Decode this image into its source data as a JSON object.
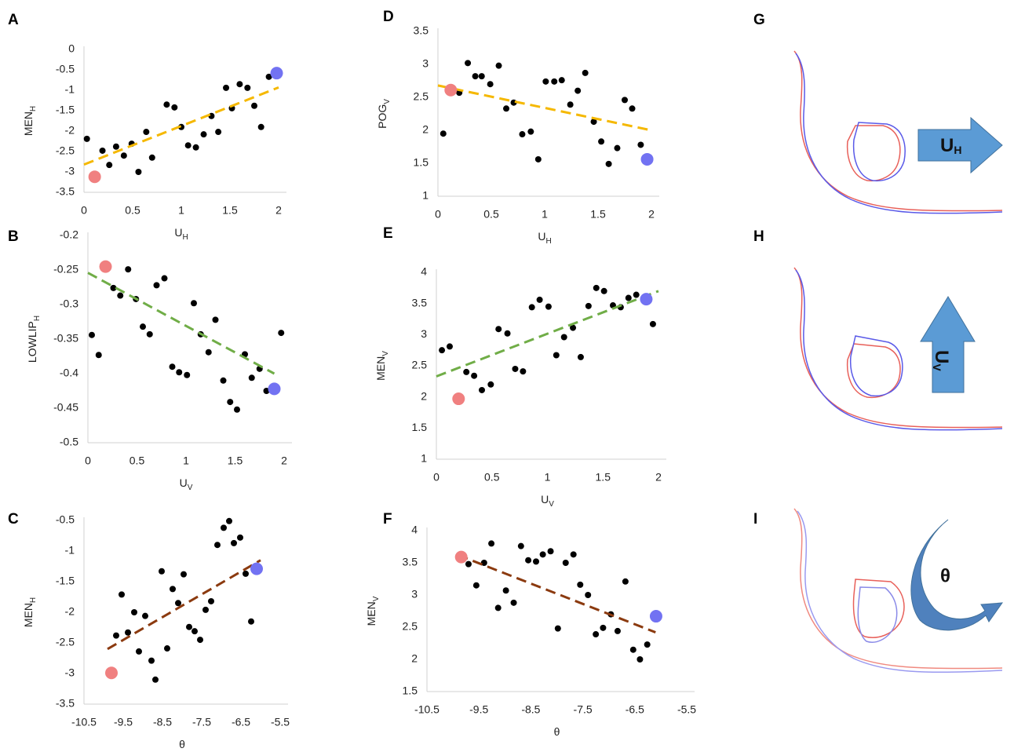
{
  "chart_data": [
    {
      "type": "scatter",
      "panel": "A",
      "xlabel": "U",
      "xlabel_sub": "H",
      "ylabel": "MEN",
      "ylabel_sub": "H",
      "xlim": [
        0,
        2
      ],
      "xticks": [
        0,
        0.5,
        1,
        1.5,
        2
      ],
      "ylim": [
        -3.5,
        0
      ],
      "yticks": [
        0,
        -0.5,
        -1,
        -1.5,
        -2,
        -2.5,
        -3,
        -3.5
      ],
      "trendline": {
        "x": [
          0,
          2
        ],
        "y": [
          -2.82,
          -0.93
        ],
        "color": "#f5b800"
      },
      "series": [
        {
          "color": "#000000",
          "x": [
            0.03,
            0.19,
            0.26,
            0.33,
            0.41,
            0.49,
            0.56,
            0.64,
            0.7,
            0.85,
            0.93,
            1.0,
            1.07,
            1.15,
            1.23,
            1.31,
            1.38,
            1.46,
            1.52,
            1.6,
            1.68,
            1.75,
            1.82,
            1.9
          ],
          "values": [
            -2.19,
            -2.48,
            -2.83,
            -2.38,
            -2.6,
            -2.31,
            -3.0,
            -2.02,
            -2.65,
            -1.35,
            -1.42,
            -1.9,
            -2.35,
            -2.4,
            -2.08,
            -1.63,
            -2.02,
            -0.94,
            -1.44,
            -0.85,
            -0.94,
            -1.38,
            -1.9,
            -0.67
          ]
        },
        {
          "color": "#f08080",
          "x": [
            0.11
          ],
          "values": [
            -3.12
          ]
        },
        {
          "color": "#7272f2",
          "x": [
            1.98
          ],
          "values": [
            -0.58
          ]
        }
      ]
    },
    {
      "type": "scatter",
      "panel": "B",
      "xlabel": "U",
      "xlabel_sub": "V",
      "ylabel": "LOWLIP",
      "ylabel_sub": "H",
      "xlim": [
        0,
        2
      ],
      "xticks": [
        0,
        0.5,
        1,
        1.5,
        2
      ],
      "ylim": [
        -0.5,
        -0.2
      ],
      "yticks": [
        -0.2,
        -0.25,
        -0.3,
        -0.35,
        -0.4,
        -0.45,
        -0.5
      ],
      "trendline": {
        "x": [
          0,
          1.9
        ],
        "y": [
          -0.254,
          -0.4
        ],
        "color": "#70ad47"
      },
      "series": [
        {
          "color": "#000000",
          "x": [
            0.04,
            0.11,
            0.26,
            0.33,
            0.41,
            0.49,
            0.56,
            0.63,
            0.7,
            0.78,
            0.86,
            0.93,
            1.01,
            1.08,
            1.15,
            1.23,
            1.3,
            1.38,
            1.45,
            1.52,
            1.6,
            1.67,
            1.75,
            1.82,
            1.97
          ],
          "values": [
            -0.344,
            -0.373,
            -0.276,
            -0.287,
            -0.249,
            -0.292,
            -0.332,
            -0.343,
            -0.272,
            -0.262,
            -0.39,
            -0.398,
            -0.402,
            -0.298,
            -0.343,
            -0.369,
            -0.322,
            -0.41,
            -0.441,
            -0.452,
            -0.372,
            -0.406,
            -0.393,
            -0.425,
            -0.341
          ]
        },
        {
          "color": "#f08080",
          "x": [
            0.18
          ],
          "values": [
            -0.245
          ]
        },
        {
          "color": "#7272f2",
          "x": [
            1.9
          ],
          "values": [
            -0.422
          ]
        }
      ]
    },
    {
      "type": "scatter",
      "panel": "C",
      "xlabel": "θ",
      "ylabel": "MEN",
      "ylabel_sub": "H",
      "xlim": [
        -10.5,
        -5.5
      ],
      "xticks": [
        -10.5,
        -9.5,
        -8.5,
        -7.5,
        -6.5,
        -5.5
      ],
      "ylim": [
        -3.5,
        -0.5
      ],
      "yticks": [
        -0.5,
        -1,
        -1.5,
        -2,
        -2.5,
        -3,
        -3.5
      ],
      "trendline": {
        "x": [
          -9.9,
          -6.0
        ],
        "y": [
          -2.6,
          -1.15
        ],
        "color": "#8b3a0f"
      },
      "series": [
        {
          "color": "#000000",
          "x": [
            -9.68,
            -9.54,
            -9.38,
            -9.22,
            -9.1,
            -8.94,
            -8.78,
            -8.68,
            -8.52,
            -8.38,
            -8.24,
            -8.1,
            -7.96,
            -7.82,
            -7.68,
            -7.54,
            -7.4,
            -7.26,
            -7.1,
            -6.94,
            -6.8,
            -6.68,
            -6.52,
            -6.38,
            -6.24
          ],
          "values": [
            -2.38,
            -1.71,
            -2.33,
            -2.0,
            -2.64,
            -2.06,
            -2.79,
            -3.1,
            -1.33,
            -2.59,
            -1.62,
            -1.85,
            -1.38,
            -2.24,
            -2.31,
            -2.45,
            -1.96,
            -1.82,
            -0.9,
            -0.62,
            -0.51,
            -0.87,
            -0.78,
            -1.37,
            -2.15
          ]
        },
        {
          "color": "#f08080",
          "x": [
            -9.8
          ],
          "values": [
            -2.99
          ]
        },
        {
          "color": "#7272f2",
          "x": [
            -6.1
          ],
          "values": [
            -1.29
          ]
        }
      ]
    },
    {
      "type": "scatter",
      "panel": "D",
      "xlabel": "U",
      "xlabel_sub": "H",
      "ylabel": "POG",
      "ylabel_sub": "V",
      "xlim": [
        0,
        2
      ],
      "xticks": [
        0,
        0.5,
        1,
        1.5,
        2
      ],
      "ylim": [
        1,
        3.5
      ],
      "yticks": [
        3.5,
        3,
        2.5,
        2,
        1.5,
        1
      ],
      "trendline": {
        "x": [
          0,
          2
        ],
        "y": [
          2.68,
          2.0
        ],
        "color": "#f5b800"
      },
      "series": [
        {
          "color": "#000000",
          "x": [
            0.05,
            0.2,
            0.28,
            0.35,
            0.41,
            0.49,
            0.57,
            0.64,
            0.71,
            0.79,
            0.87,
            0.94,
            1.01,
            1.09,
            1.16,
            1.24,
            1.31,
            1.38,
            1.46,
            1.53,
            1.6,
            1.68,
            1.75,
            1.82,
            1.9
          ],
          "values": [
            1.95,
            2.57,
            3.02,
            2.82,
            2.82,
            2.7,
            2.98,
            2.33,
            2.42,
            1.94,
            1.98,
            1.56,
            2.74,
            2.74,
            2.76,
            2.39,
            2.6,
            2.87,
            2.13,
            1.83,
            1.49,
            1.73,
            2.46,
            2.33,
            1.78
          ]
        },
        {
          "color": "#f08080",
          "x": [
            0.12
          ],
          "values": [
            2.61
          ]
        },
        {
          "color": "#7272f2",
          "x": [
            1.96
          ],
          "values": [
            1.56
          ]
        }
      ]
    },
    {
      "type": "scatter",
      "panel": "E",
      "xlabel": "U",
      "xlabel_sub": "V",
      "ylabel": "MEN",
      "ylabel_sub": "V",
      "xlim": [
        0,
        2
      ],
      "xticks": [
        0,
        0.5,
        1,
        1.5,
        2
      ],
      "ylim": [
        1,
        4
      ],
      "yticks": [
        4,
        3.5,
        3,
        2.5,
        2,
        1.5,
        1
      ],
      "trendline": {
        "x": [
          0,
          2
        ],
        "y": [
          2.33,
          3.7
        ],
        "color": "#70ad47"
      },
      "series": [
        {
          "color": "#000000",
          "x": [
            0.05,
            0.12,
            0.27,
            0.34,
            0.41,
            0.49,
            0.56,
            0.64,
            0.71,
            0.78,
            0.86,
            0.93,
            1.01,
            1.08,
            1.15,
            1.23,
            1.3,
            1.37,
            1.44,
            1.51,
            1.59,
            1.66,
            1.73,
            1.8,
            1.95
          ],
          "values": [
            2.75,
            2.81,
            2.4,
            2.34,
            2.11,
            2.2,
            3.09,
            3.02,
            2.45,
            2.41,
            3.44,
            3.56,
            3.45,
            2.67,
            2.96,
            3.11,
            2.64,
            3.46,
            3.75,
            3.7,
            3.47,
            3.44,
            3.59,
            3.64,
            3.17
          ]
        },
        {
          "color": "#f08080",
          "x": [
            0.2
          ],
          "values": [
            1.97
          ]
        },
        {
          "color": "#7272f2",
          "x": [
            1.89
          ],
          "values": [
            3.57
          ]
        }
      ]
    },
    {
      "type": "scatter",
      "panel": "F",
      "xlabel": "θ",
      "ylabel": "MEN",
      "ylabel_sub": "V",
      "xlim": [
        -10.5,
        -5.5
      ],
      "xticks": [
        -10.5,
        -9.5,
        -8.5,
        -7.5,
        -6.5,
        -5.5
      ],
      "ylim": [
        1.5,
        4
      ],
      "yticks": [
        4,
        3.5,
        3,
        2.5,
        2,
        1.5
      ],
      "trendline": {
        "x": [
          -9.9,
          -6.1
        ],
        "y": [
          3.62,
          2.42
        ],
        "color": "#8b3a0f"
      },
      "series": [
        {
          "color": "#000000",
          "x": [
            -9.7,
            -9.55,
            -9.4,
            -9.26,
            -9.13,
            -8.98,
            -8.83,
            -8.69,
            -8.55,
            -8.4,
            -8.27,
            -8.12,
            -7.98,
            -7.83,
            -7.68,
            -7.55,
            -7.4,
            -7.25,
            -7.11,
            -6.96,
            -6.83,
            -6.68,
            -6.53,
            -6.4,
            -6.26
          ],
          "values": [
            3.48,
            3.15,
            3.5,
            3.8,
            2.8,
            3.07,
            2.88,
            3.76,
            3.54,
            3.52,
            3.63,
            3.68,
            2.48,
            3.5,
            3.63,
            3.16,
            3.0,
            2.39,
            2.49,
            2.7,
            2.44,
            3.21,
            2.15,
            2.0,
            2.23
          ]
        },
        {
          "color": "#f08080",
          "x": [
            -9.84
          ],
          "values": [
            3.59
          ]
        },
        {
          "color": "#7272f2",
          "x": [
            -6.09
          ],
          "values": [
            2.67
          ]
        }
      ]
    }
  ],
  "diagrams": [
    {
      "label": "G",
      "arrow_text": "U",
      "arrow_sub": "H"
    },
    {
      "label": "H",
      "arrow_text": "U",
      "arrow_sub": "V"
    },
    {
      "label": "I",
      "arrow_text": "θ"
    }
  ]
}
